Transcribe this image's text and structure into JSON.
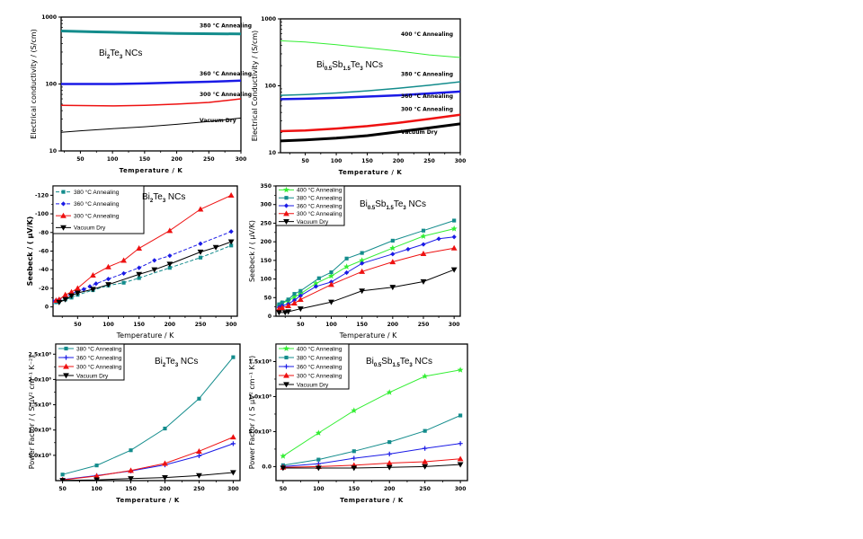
{
  "colors": {
    "c380": "#138c8c",
    "c360": "#1a1ae6",
    "c300": "#ee1111",
    "cvac": "#000000",
    "c400": "#33ee33"
  },
  "chart_data": [
    {
      "id": "sigma_bite",
      "type": "line",
      "title": "Bi2Te3 NCs",
      "title_parts": [
        {
          "t": "Bi"
        },
        {
          "t": "2",
          "sub": true
        },
        {
          "t": "Te"
        },
        {
          "t": "3",
          "sub": true
        },
        {
          "t": " NCs"
        }
      ],
      "xlabel": "Temperature / K",
      "ylabel": "Electrical conductivity  / (S/cm)",
      "yscale": "log",
      "xlim": [
        20,
        300
      ],
      "ylim": [
        10,
        1000
      ],
      "xticks": [
        50,
        100,
        150,
        200,
        250,
        300
      ],
      "yticks": [
        10,
        100,
        1000
      ],
      "ytick_labels": [
        "10",
        "100",
        "1000"
      ],
      "series": [
        {
          "name": "380 °C Annealing",
          "color_key": "c380",
          "width": 3,
          "x": [
            20,
            75,
            150,
            200,
            300
          ],
          "y": [
            620,
            600,
            580,
            570,
            560
          ]
        },
        {
          "name": "360 °C Annealing",
          "color_key": "c360",
          "width": 2.5,
          "x": [
            20,
            100,
            150,
            200,
            250,
            300
          ],
          "y": [
            100,
            100,
            102,
            105,
            108,
            112
          ]
        },
        {
          "name": "300 °C Annealing",
          "color_key": "c300",
          "width": 1.5,
          "x": [
            20,
            100,
            150,
            200,
            250,
            300
          ],
          "y": [
            48,
            47,
            48,
            50,
            53,
            60
          ]
        },
        {
          "name": "Vacuum Dry",
          "color_key": "cvac",
          "width": 1,
          "x": [
            20,
            50,
            100,
            150,
            200,
            250,
            300
          ],
          "y": [
            19,
            20,
            21.5,
            23,
            25,
            27.5,
            31
          ]
        }
      ],
      "annotations": [
        {
          "text": "380 °C Annealing",
          "x": 220,
          "y": 700
        },
        {
          "text": "360 °C Annealing",
          "x": 220,
          "y": 135
        },
        {
          "text": "300 °C Annealing",
          "x": 220,
          "y": 66
        },
        {
          "text": "Vacuum Dry",
          "x": 220,
          "y": 27
        }
      ]
    },
    {
      "id": "sigma_bst",
      "type": "line",
      "title": "Bi0.5Sb1.5Te3 NCs",
      "title_parts": [
        {
          "t": "Bi"
        },
        {
          "t": "0.5",
          "sub": true
        },
        {
          "t": "Sb"
        },
        {
          "t": "1.5",
          "sub": true
        },
        {
          "t": "Te"
        },
        {
          "t": "3",
          "sub": true
        },
        {
          "t": " NCs"
        }
      ],
      "xlabel": "Temperature / K",
      "ylabel": "Electrical Conductivity / (S/cm)",
      "yscale": "log",
      "xlim": [
        10,
        300
      ],
      "ylim": [
        10,
        1000
      ],
      "xticks": [
        50,
        100,
        150,
        200,
        250,
        300
      ],
      "yticks": [
        10,
        100,
        1000
      ],
      "ytick_labels": [
        "10",
        "100",
        "1000"
      ],
      "series": [
        {
          "name": "400 °C Annealing",
          "color_key": "c400",
          "width": 1,
          "x": [
            10,
            50,
            100,
            150,
            200,
            250,
            300
          ],
          "y": [
            470,
            450,
            410,
            370,
            330,
            290,
            265
          ]
        },
        {
          "name": "380 °C Annealing",
          "color_key": "c380",
          "width": 1.5,
          "x": [
            10,
            50,
            100,
            150,
            200,
            250,
            300
          ],
          "y": [
            72,
            74,
            78,
            84,
            92,
            102,
            115
          ]
        },
        {
          "name": "360 °C Annealing",
          "color_key": "c360",
          "width": 2.5,
          "x": [
            10,
            50,
            100,
            150,
            200,
            250,
            300
          ],
          "y": [
            63,
            64,
            66,
            69,
            72,
            77,
            82
          ]
        },
        {
          "name": "300 °C Annealing",
          "color_key": "c300",
          "width": 2.5,
          "x": [
            10,
            50,
            100,
            150,
            200,
            250,
            300
          ],
          "y": [
            21,
            21.5,
            23,
            25,
            28,
            32,
            37
          ]
        },
        {
          "name": "Vacuum Dry",
          "color_key": "cvac",
          "width": 3,
          "x": [
            10,
            50,
            100,
            150,
            200,
            250,
            300
          ],
          "y": [
            15,
            15.5,
            16.5,
            18,
            20.5,
            23.5,
            27
          ]
        }
      ],
      "annotations": [
        {
          "text": "400 °C Annealing",
          "x": 230,
          "y": 560
        },
        {
          "text": "380 °C Annealing",
          "x": 230,
          "y": 140
        },
        {
          "text": "360 °C Annealing",
          "x": 230,
          "y": 66
        },
        {
          "text": "300 °C Annealing",
          "x": 230,
          "y": 42
        },
        {
          "text": "Vacuum Dry",
          "x": 230,
          "y": 19
        }
      ]
    },
    {
      "id": "seebeck_bite",
      "type": "line",
      "title": "Bi2Te3 NCs",
      "title_parts": [
        {
          "t": "Bi"
        },
        {
          "t": "2",
          "sub": true
        },
        {
          "t": "Te"
        },
        {
          "t": "3",
          "sub": true
        },
        {
          "t": " NCs"
        }
      ],
      "xlabel": "Temperature / K",
      "ylabel": "Seebeck / ( μV/K)",
      "ylabel_bold": true,
      "yscale": "linear",
      "invert_y": true,
      "xlim": [
        10,
        310
      ],
      "ylim": [
        10,
        -130
      ],
      "xticks": [
        50,
        100,
        150,
        200,
        250,
        300
      ],
      "yticks": [
        0,
        -20,
        -40,
        -60,
        -80,
        -100,
        -120
      ],
      "ytick_labels": [
        "0",
        "-20",
        "-40",
        "-60",
        "-80",
        "-100",
        "-120"
      ],
      "legend": "top-left",
      "series": [
        {
          "name": "380 °C Annealing",
          "color_key": "c380",
          "marker": "square",
          "dash": "4,2",
          "x": [
            15,
            20,
            30,
            40,
            50,
            75,
            100,
            125,
            150,
            200,
            250,
            300
          ],
          "y": [
            -5,
            -6,
            -8,
            -10,
            -13,
            -18,
            -23,
            -26,
            -31,
            -42,
            -53,
            -66
          ]
        },
        {
          "name": "360 °C Annealing",
          "color_key": "c360",
          "marker": "diamond",
          "dash": "4,2",
          "x": [
            10,
            15,
            20,
            30,
            40,
            50,
            60,
            70,
            80,
            100,
            125,
            150,
            175,
            200,
            250,
            300
          ],
          "y": [
            -6,
            -7,
            -8,
            -11,
            -14,
            -17,
            -19,
            -22,
            -25,
            -30,
            -36,
            -42,
            -50,
            -55,
            -68,
            -81
          ]
        },
        {
          "name": "300 °C Annealing",
          "color_key": "c300",
          "marker": "triangle-up",
          "x": [
            15,
            20,
            30,
            40,
            50,
            75,
            100,
            125,
            150,
            200,
            250,
            300
          ],
          "y": [
            -7,
            -8,
            -13,
            -16,
            -20,
            -34,
            -43,
            -50,
            -63,
            -82,
            -105,
            -120
          ]
        },
        {
          "name": "Vacuum Dry",
          "color_key": "cvac",
          "marker": "triangle-down",
          "x": [
            20,
            30,
            40,
            50,
            75,
            100,
            150,
            175,
            200,
            250,
            275,
            300
          ],
          "y": [
            -5,
            -8,
            -12,
            -15,
            -19,
            -24,
            -35,
            -40,
            -46,
            -59,
            -64,
            -70
          ]
        }
      ]
    },
    {
      "id": "seebeck_bst",
      "type": "line",
      "title": "Bi0.5Sb1.5Te3 NCs",
      "title_parts": [
        {
          "t": "Bi"
        },
        {
          "t": "0.5",
          "sub": true
        },
        {
          "t": "Sb"
        },
        {
          "t": "1.5",
          "sub": true
        },
        {
          "t": "Te"
        },
        {
          "t": "3",
          "sub": true
        },
        {
          "t": " NCs"
        }
      ],
      "xlabel": "Temperature / K",
      "ylabel": "Seebeck / ( μV/K)",
      "yscale": "linear",
      "xlim": [
        10,
        310
      ],
      "ylim": [
        0,
        350
      ],
      "xticks": [
        50,
        100,
        150,
        200,
        250,
        300
      ],
      "yticks": [
        0,
        50,
        100,
        150,
        200,
        250,
        300,
        350
      ],
      "ytick_labels": [
        "0",
        "50",
        "100",
        "150",
        "200",
        "250",
        "300",
        "350"
      ],
      "legend": "top-left",
      "series": [
        {
          "name": "400 °C Annealing",
          "color_key": "c400",
          "marker": "star",
          "x": [
            15,
            20,
            30,
            40,
            50,
            75,
            100,
            125,
            150,
            200,
            250,
            300
          ],
          "y": [
            28,
            35,
            42,
            52,
            60,
            88,
            108,
            133,
            150,
            183,
            215,
            235
          ]
        },
        {
          "name": "380 °C Annealing",
          "color_key": "c380",
          "marker": "square",
          "x": [
            15,
            20,
            30,
            40,
            50,
            80,
            100,
            125,
            150,
            200,
            250,
            300
          ],
          "y": [
            32,
            37,
            45,
            60,
            68,
            102,
            118,
            155,
            170,
            203,
            230,
            257
          ]
        },
        {
          "name": "360 °C Annealing",
          "color_key": "c360",
          "marker": "diamond",
          "x": [
            15,
            20,
            30,
            40,
            50,
            75,
            100,
            125,
            150,
            200,
            225,
            250,
            275,
            300
          ],
          "y": [
            24,
            28,
            33,
            43,
            55,
            80,
            92,
            117,
            142,
            167,
            180,
            193,
            208,
            213
          ]
        },
        {
          "name": "300 °C Annealing",
          "color_key": "c300",
          "marker": "triangle-up",
          "x": [
            15,
            20,
            30,
            40,
            50,
            100,
            150,
            200,
            250,
            300
          ],
          "y": [
            20,
            23,
            28,
            35,
            45,
            85,
            120,
            146,
            168,
            183
          ]
        },
        {
          "name": "Vacuum Dry",
          "color_key": "cvac",
          "marker": "triangle-down",
          "x": [
            15,
            25,
            30,
            50,
            100,
            150,
            200,
            250,
            300
          ],
          "y": [
            10,
            10,
            12,
            20,
            38,
            68,
            78,
            93,
            125
          ]
        }
      ]
    },
    {
      "id": "pf_bite",
      "type": "line",
      "title": "Bi2Te3 NCs",
      "title_parts": [
        {
          "t": "Bi"
        },
        {
          "t": "2",
          "sub": true
        },
        {
          "t": "Te"
        },
        {
          "t": "3",
          "sub": true
        },
        {
          "t": " NCs"
        }
      ],
      "xlabel": "Temperature / K",
      "ylabel": "Power Factor / ( S μV² cm⁻¹ K⁻²)",
      "yscale": "linear",
      "xlim": [
        40,
        310
      ],
      "ylim": [
        0,
        2700000.0
      ],
      "xticks": [
        50,
        100,
        150,
        200,
        250,
        300
      ],
      "yticks": [
        500000,
        1000000,
        1500000,
        2000000,
        2500000
      ],
      "ytick_labels": [
        "5.0x10⁵",
        "1.0x10⁶",
        "1.5x10⁶",
        "2.0x10⁶",
        "2.5x10⁶"
      ],
      "legend": "top-left",
      "series": [
        {
          "name": "380 °C Annealing",
          "color_key": "c380",
          "marker": "square",
          "x": [
            50,
            100,
            150,
            200,
            250,
            300
          ],
          "y": [
            120000,
            300000,
            600000,
            1030000,
            1620000,
            2440000
          ]
        },
        {
          "name": "360 °C Annealing",
          "color_key": "c360",
          "marker": "plus",
          "x": [
            50,
            100,
            150,
            200,
            250,
            300
          ],
          "y": [
            20000,
            100000,
            190000,
            310000,
            490000,
            730000
          ]
        },
        {
          "name": "300 °C Annealing",
          "color_key": "c300",
          "marker": "triangle-up",
          "x": [
            50,
            100,
            150,
            200,
            250,
            300
          ],
          "y": [
            15000,
            90000,
            200000,
            340000,
            580000,
            860000
          ]
        },
        {
          "name": "Vacuum Dry",
          "color_key": "cvac",
          "marker": "triangle-down",
          "x": [
            50,
            100,
            150,
            200,
            250,
            300
          ],
          "y": [
            5000,
            15000,
            40000,
            60000,
            100000,
            160000
          ]
        }
      ]
    },
    {
      "id": "pf_bst",
      "type": "line",
      "title": "Bi0.5Sb1.5Te3 NCs",
      "title_parts": [
        {
          "t": "Bi"
        },
        {
          "t": "0.5",
          "sub": true
        },
        {
          "t": "Sb"
        },
        {
          "t": "1.5",
          "sub": true
        },
        {
          "t": "Te"
        },
        {
          "t": "3",
          "sub": true
        },
        {
          "t": " NCs"
        }
      ],
      "xlabel": "Temperature / K",
      "ylabel": "Power Factor / ( S μV² cm⁻¹ K⁻²)",
      "yscale": "linear",
      "xlim": [
        40,
        310
      ],
      "ylim": [
        -200000,
        1750000
      ],
      "xticks": [
        50,
        100,
        150,
        200,
        250,
        300
      ],
      "yticks": [
        0,
        500000,
        1000000,
        1500000
      ],
      "ytick_labels": [
        "0.0",
        "5.0x10⁵",
        "1.0x10⁶",
        "1.5x10⁶"
      ],
      "legend": "top-left",
      "series": [
        {
          "name": "400 °C Annealing",
          "color_key": "c400",
          "marker": "star",
          "x": [
            50,
            100,
            150,
            200,
            250,
            300
          ],
          "y": [
            150000,
            480000,
            800000,
            1060000,
            1290000,
            1380000
          ]
        },
        {
          "name": "380 °C Annealing",
          "color_key": "c380",
          "marker": "square",
          "x": [
            50,
            100,
            150,
            200,
            250,
            300
          ],
          "y": [
            20000,
            100000,
            220000,
            350000,
            510000,
            730000
          ]
        },
        {
          "name": "360 °C Annealing",
          "color_key": "c360",
          "marker": "plus",
          "x": [
            50,
            100,
            150,
            200,
            250,
            300
          ],
          "y": [
            0,
            40000,
            120000,
            180000,
            260000,
            330000
          ]
        },
        {
          "name": "300 °C Annealing",
          "color_key": "c300",
          "marker": "triangle-up",
          "x": [
            50,
            100,
            150,
            200,
            250,
            300
          ],
          "y": [
            -10000,
            0,
            20000,
            50000,
            70000,
            110000
          ]
        },
        {
          "name": "Vacuum Dry",
          "color_key": "cvac",
          "marker": "triangle-down",
          "x": [
            50,
            100,
            150,
            200,
            250,
            300
          ],
          "y": [
            -20000,
            -20000,
            -20000,
            -10000,
            0,
            30000
          ]
        }
      ]
    }
  ]
}
